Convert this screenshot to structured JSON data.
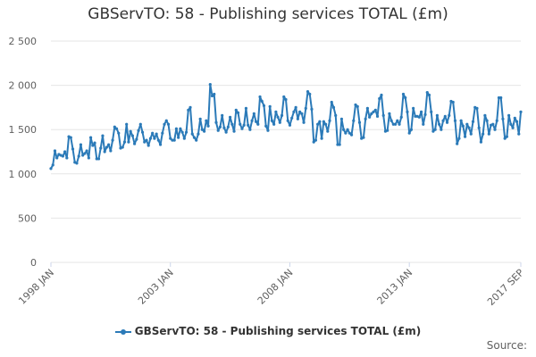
{
  "colors": {
    "series": "#2b7ab8",
    "grid": "#e6e6e6",
    "axis_text": "#606060"
  },
  "credits": "Source:",
  "chart_data": {
    "type": "line",
    "title": "GBServTO: 58 - Publishing services TOTAL (£m)",
    "xlabel": "",
    "ylabel": "",
    "ylim": [
      0,
      2500
    ],
    "yticks": [
      0,
      500,
      1000,
      1500,
      2000,
      2500
    ],
    "ytick_labels": [
      "0",
      "500",
      "1 000",
      "1 500",
      "2 000",
      "2 500"
    ],
    "x_range": [
      "1998-01",
      "2017-09"
    ],
    "xtick_labels": [
      {
        "label": "1998 JAN",
        "month": "1998-01"
      },
      {
        "label": "2003 JAN",
        "month": "2003-01"
      },
      {
        "label": "2008 JAN",
        "month": "2008-01"
      },
      {
        "label": "2013 JAN",
        "month": "2013-01"
      },
      {
        "label": "2017 SEP",
        "month": "2017-09"
      }
    ],
    "grid": true,
    "legend_position": "bottom-center",
    "series": [
      {
        "name": "GBServTO: 58 - Publishing services TOTAL (£m)",
        "start_month": "1998-01",
        "frequency": "monthly",
        "values": [
          1060,
          1100,
          1260,
          1180,
          1220,
          1210,
          1200,
          1250,
          1180,
          1420,
          1410,
          1280,
          1130,
          1120,
          1200,
          1330,
          1210,
          1230,
          1260,
          1180,
          1410,
          1320,
          1350,
          1170,
          1170,
          1290,
          1430,
          1250,
          1300,
          1330,
          1260,
          1380,
          1530,
          1510,
          1460,
          1290,
          1300,
          1360,
          1560,
          1360,
          1480,
          1430,
          1340,
          1390,
          1490,
          1560,
          1470,
          1360,
          1380,
          1320,
          1400,
          1460,
          1400,
          1450,
          1380,
          1330,
          1460,
          1560,
          1600,
          1560,
          1400,
          1380,
          1380,
          1510,
          1410,
          1510,
          1470,
          1400,
          1470,
          1720,
          1750,
          1450,
          1410,
          1380,
          1450,
          1620,
          1500,
          1480,
          1600,
          1540,
          2010,
          1880,
          1900,
          1580,
          1490,
          1530,
          1660,
          1520,
          1470,
          1530,
          1640,
          1560,
          1480,
          1720,
          1690,
          1560,
          1510,
          1550,
          1740,
          1550,
          1500,
          1600,
          1680,
          1590,
          1560,
          1870,
          1820,
          1770,
          1540,
          1490,
          1760,
          1600,
          1560,
          1700,
          1640,
          1580,
          1660,
          1870,
          1840,
          1600,
          1550,
          1630,
          1700,
          1750,
          1620,
          1700,
          1680,
          1580,
          1740,
          1930,
          1900,
          1730,
          1360,
          1380,
          1560,
          1590,
          1400,
          1590,
          1560,
          1480,
          1600,
          1810,
          1750,
          1660,
          1330,
          1330,
          1620,
          1500,
          1460,
          1500,
          1460,
          1440,
          1600,
          1780,
          1760,
          1580,
          1400,
          1410,
          1620,
          1740,
          1640,
          1680,
          1700,
          1720,
          1650,
          1850,
          1890,
          1660,
          1480,
          1490,
          1680,
          1600,
          1560,
          1560,
          1600,
          1560,
          1640,
          1900,
          1860,
          1700,
          1460,
          1500,
          1740,
          1650,
          1650,
          1640,
          1700,
          1560,
          1670,
          1920,
          1890,
          1700,
          1480,
          1500,
          1660,
          1560,
          1500,
          1600,
          1650,
          1580,
          1660,
          1820,
          1810,
          1600,
          1340,
          1400,
          1600,
          1540,
          1420,
          1560,
          1520,
          1450,
          1590,
          1750,
          1740,
          1520,
          1360,
          1450,
          1660,
          1600,
          1450,
          1550,
          1560,
          1500,
          1600,
          1860,
          1860,
          1620,
          1400,
          1420,
          1660,
          1560,
          1520,
          1630,
          1590,
          1450,
          1700
        ]
      }
    ]
  }
}
